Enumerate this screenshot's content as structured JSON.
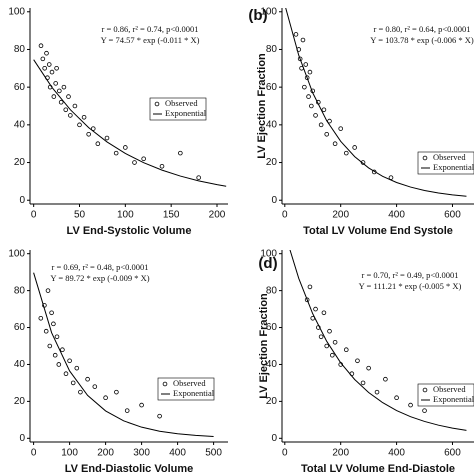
{
  "chart_data": [
    {
      "type": "scatter",
      "x_label": "LV End-Systolic Volume",
      "annotations": [
        "r = 0.86, r² = 0.74, p<0.0001",
        "Y = 74.57 * exp (-0.011 * X)"
      ],
      "xlim": [
        -4,
        212
      ],
      "ylim": [
        -2,
        102
      ],
      "xticks": [
        0,
        50,
        100,
        150,
        200
      ],
      "yticks": [
        0,
        20,
        40,
        60,
        80,
        100
      ],
      "legend": "right",
      "series": [
        {
          "name": "Observed",
          "color": "#000000",
          "x": [
            8,
            10,
            12,
            14,
            15,
            17,
            18,
            20,
            22,
            24,
            25,
            28,
            30,
            33,
            35,
            38,
            40,
            45,
            50,
            55,
            60,
            65,
            70,
            80,
            90,
            100,
            110,
            120,
            140,
            160,
            180
          ],
          "values": [
            82,
            75,
            70,
            78,
            65,
            72,
            60,
            68,
            55,
            62,
            70,
            58,
            52,
            60,
            48,
            55,
            45,
            50,
            40,
            44,
            35,
            38,
            30,
            33,
            25,
            28,
            20,
            22,
            18,
            25,
            12
          ]
        },
        {
          "name": "Exponential",
          "color": "#000000",
          "line": true,
          "x": [
            0,
            20,
            40,
            60,
            80,
            100,
            120,
            140,
            160,
            180,
            200,
            210
          ],
          "values": [
            74.57,
            59.84,
            48.03,
            38.54,
            30.93,
            24.82,
            19.92,
            15.99,
            12.83,
            10.29,
            8.26,
            7.4
          ]
        }
      ]
    },
    {
      "type": "scatter",
      "panel_label": "(b)",
      "x_label": "Total LV Volume End Systole",
      "y_label": "LV Ejection Fraction",
      "annotations": [
        "r = 0.80, r² = 0.64, p<0.0001",
        "Y = 103.78 * exp (-0.006 * X)"
      ],
      "xlim": [
        -10,
        677
      ],
      "ylim": [
        -2,
        102
      ],
      "xticks": [
        0,
        200,
        400,
        600
      ],
      "yticks": [
        0,
        20,
        40,
        60,
        80,
        100
      ],
      "legend": "right",
      "series": [
        {
          "name": "Observed",
          "color": "#000000",
          "x": [
            40,
            50,
            55,
            60,
            65,
            70,
            75,
            80,
            85,
            90,
            95,
            100,
            110,
            120,
            130,
            140,
            150,
            160,
            180,
            200,
            220,
            250,
            280,
            320,
            380
          ],
          "values": [
            88,
            80,
            75,
            70,
            85,
            60,
            72,
            65,
            55,
            68,
            50,
            58,
            45,
            52,
            40,
            48,
            35,
            42,
            30,
            38,
            25,
            28,
            20,
            15,
            12
          ]
        },
        {
          "name": "Exponential",
          "color": "#000000",
          "line": true,
          "x": [
            0,
            50,
            100,
            150,
            200,
            250,
            300,
            350,
            400,
            450,
            500,
            550,
            600,
            650
          ],
          "values": [
            103.78,
            76.88,
            56.95,
            42.19,
            31.26,
            23.16,
            17.15,
            12.71,
            9.42,
            6.98,
            5.17,
            3.83,
            2.84,
            2.1
          ]
        }
      ]
    },
    {
      "type": "scatter",
      "x_label": "LV End-Diastolic Volume",
      "annotations": [
        "r = 0.69, r² = 0.48, p<0.0001",
        "Y = 89.72 * exp (-0.009 * X)"
      ],
      "xlim": [
        -10,
        540
      ],
      "ylim": [
        -2,
        102
      ],
      "xticks": [
        0,
        100,
        200,
        300,
        400,
        500
      ],
      "yticks": [
        0,
        20,
        40,
        60,
        80,
        100
      ],
      "legend": "right",
      "series": [
        {
          "name": "Observed",
          "color": "#000000",
          "x": [
            20,
            30,
            35,
            40,
            45,
            50,
            55,
            60,
            65,
            70,
            80,
            90,
            100,
            110,
            120,
            130,
            150,
            170,
            200,
            230,
            260,
            300,
            350
          ],
          "values": [
            65,
            72,
            58,
            80,
            50,
            68,
            62,
            45,
            55,
            40,
            48,
            35,
            42,
            30,
            38,
            25,
            32,
            28,
            22,
            25,
            15,
            18,
            12
          ]
        },
        {
          "name": "Exponential",
          "color": "#000000",
          "line": true,
          "x": [
            0,
            50,
            100,
            150,
            200,
            250,
            300,
            350,
            400,
            450,
            500
          ],
          "values": [
            89.72,
            57.21,
            36.48,
            23.26,
            14.83,
            9.46,
            6.03,
            3.85,
            2.45,
            1.56,
            1.0
          ]
        }
      ]
    },
    {
      "type": "scatter",
      "panel_label": "(d)",
      "x_label": "Total LV Volume End-Diastole",
      "y_label": "LV Ejection Fraction",
      "annotations": [
        "r = 0.70, r² = 0.49, p<0.0001",
        "Y = 111.21 * exp (-0.005 * X)"
      ],
      "xlim": [
        -10,
        677
      ],
      "ylim": [
        -2,
        102
      ],
      "xticks": [
        0,
        200,
        400,
        600
      ],
      "yticks": [
        0,
        20,
        40,
        60,
        80,
        100
      ],
      "legend": "right",
      "series": [
        {
          "name": "Observed",
          "color": "#000000",
          "x": [
            80,
            90,
            100,
            110,
            120,
            130,
            140,
            150,
            160,
            170,
            180,
            200,
            220,
            240,
            260,
            280,
            300,
            330,
            360,
            400,
            450,
            500
          ],
          "values": [
            75,
            82,
            65,
            70,
            60,
            55,
            68,
            50,
            58,
            45,
            52,
            40,
            48,
            35,
            42,
            30,
            38,
            25,
            32,
            22,
            18,
            15
          ]
        },
        {
          "name": "Exponential",
          "color": "#000000",
          "line": true,
          "x": [
            0,
            50,
            100,
            150,
            200,
            250,
            300,
            350,
            400,
            450,
            500,
            550,
            600,
            650
          ],
          "values": [
            111.21,
            86.61,
            67.45,
            52.53,
            40.91,
            31.86,
            24.81,
            19.33,
            15.05,
            11.72,
            9.13,
            7.11,
            5.54,
            4.31
          ]
        }
      ]
    }
  ]
}
